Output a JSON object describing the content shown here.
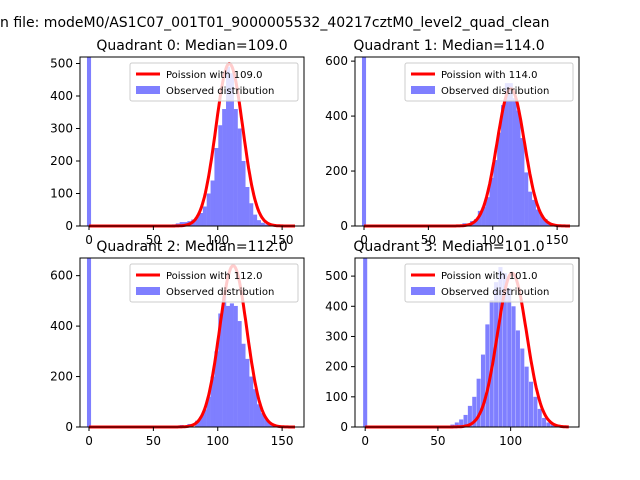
{
  "suptitle": "n file: modeM0/AS1C07_001T01_9000005532_40217cztM0_level2_quad_clean",
  "colors": {
    "observed": "#7f7fff",
    "poisson": "#ff0000"
  },
  "chart_data": [
    {
      "type": "bar",
      "title": "Quadrant 0: Median=109.0",
      "xlim": [
        -7,
        167
      ],
      "ylim": [
        0,
        520
      ],
      "xticks": [
        "0",
        "50",
        "100",
        "150"
      ],
      "yticks": [
        "0",
        "100",
        "200",
        "300",
        "400",
        "500"
      ],
      "legend": [
        "Poission with 109.0",
        "Observed distribution"
      ],
      "legend_position": "upper right",
      "series": [
        {
          "name": "Observed distribution",
          "x": [
            0,
            12,
            24,
            36,
            48,
            60,
            66,
            69,
            72,
            75,
            78,
            81,
            84,
            87,
            90,
            93,
            96,
            99,
            102,
            105,
            108,
            111,
            114,
            117,
            120,
            123,
            126,
            129,
            132,
            135,
            138,
            141,
            144,
            147,
            150,
            153,
            156
          ],
          "values": [
            520,
            0,
            0,
            0,
            3,
            3,
            5,
            8,
            12,
            12,
            15,
            20,
            28,
            40,
            60,
            100,
            140,
            240,
            310,
            360,
            490,
            470,
            360,
            300,
            200,
            120,
            70,
            35,
            18,
            10,
            5,
            0,
            0,
            0,
            0,
            0,
            0
          ]
        },
        {
          "name": "Poission with 109.0",
          "mean": 109.0,
          "peak": 500,
          "x_range": [
            0,
            160
          ]
        }
      ]
    },
    {
      "type": "bar",
      "title": "Quadrant 1: Median=114.0",
      "xlim": [
        -7,
        167
      ],
      "ylim": [
        0,
        615
      ],
      "xticks": [
        "0",
        "50",
        "100",
        "150"
      ],
      "yticks": [
        "0",
        "200",
        "400",
        "600"
      ],
      "legend": [
        "Poission with 114.0",
        "Observed distribution"
      ],
      "legend_position": "upper right",
      "series": [
        {
          "name": "Observed distribution",
          "x": [
            0,
            12,
            24,
            36,
            48,
            60,
            72,
            78,
            84,
            87,
            90,
            93,
            96,
            99,
            102,
            105,
            108,
            111,
            114,
            117,
            120,
            123,
            126,
            129,
            132,
            135,
            138,
            141,
            144,
            147,
            150
          ],
          "values": [
            615,
            0,
            0,
            0,
            0,
            3,
            5,
            10,
            18,
            25,
            55,
            70,
            105,
            175,
            240,
            340,
            440,
            520,
            520,
            465,
            420,
            320,
            195,
            125,
            95,
            60,
            40,
            25,
            12,
            5,
            0
          ]
        },
        {
          "name": "Poission with 114.0",
          "mean": 114.0,
          "peak": 500,
          "x_range": [
            0,
            160
          ]
        }
      ]
    },
    {
      "type": "bar",
      "title": "Quadrant 2: Median=112.0",
      "xlim": [
        -7,
        167
      ],
      "ylim": [
        0,
        670
      ],
      "xticks": [
        "0",
        "50",
        "100",
        "150"
      ],
      "yticks": [
        "0",
        "200",
        "400",
        "600"
      ],
      "legend": [
        "Poission with 112.0",
        "Observed distribution"
      ],
      "legend_position": "upper right",
      "series": [
        {
          "name": "Observed distribution",
          "x": [
            0,
            12,
            24,
            36,
            48,
            60,
            72,
            78,
            84,
            87,
            90,
            93,
            96,
            99,
            102,
            105,
            108,
            111,
            114,
            117,
            120,
            123,
            126,
            129,
            132,
            135,
            138,
            141,
            144,
            147,
            150,
            153,
            156
          ],
          "values": [
            670,
            0,
            0,
            0,
            0,
            3,
            8,
            12,
            25,
            40,
            70,
            120,
            200,
            300,
            450,
            520,
            480,
            490,
            480,
            420,
            330,
            270,
            200,
            150,
            90,
            55,
            30,
            15,
            5,
            3,
            0,
            0,
            0
          ]
        },
        {
          "name": "Poission with 112.0",
          "mean": 112.0,
          "peak": 640,
          "x_range": [
            0,
            160
          ]
        }
      ]
    },
    {
      "type": "bar",
      "title": "Quadrant 3: Median=101.0",
      "xlim": [
        -7,
        147
      ],
      "ylim": [
        0,
        560
      ],
      "xticks": [
        "0",
        "50",
        "100"
      ],
      "yticks": [
        "0",
        "100",
        "200",
        "300",
        "400",
        "500"
      ],
      "legend": [
        "Poission with 101.0",
        "Observed distribution"
      ],
      "legend_position": "upper right",
      "series": [
        {
          "name": "Observed distribution",
          "x": [
            0,
            10,
            20,
            30,
            40,
            50,
            60,
            63,
            66,
            69,
            72,
            75,
            78,
            81,
            84,
            87,
            90,
            93,
            96,
            99,
            102,
            105,
            108,
            111,
            114,
            117,
            120,
            123,
            126,
            129,
            132,
            135,
            138
          ],
          "values": [
            560,
            0,
            0,
            0,
            0,
            3,
            8,
            15,
            25,
            40,
            70,
            100,
            160,
            240,
            340,
            420,
            480,
            530,
            510,
            460,
            400,
            320,
            260,
            200,
            150,
            100,
            60,
            30,
            15,
            8,
            3,
            0,
            0
          ]
        },
        {
          "name": "Poission with 101.0",
          "mean": 101.0,
          "peak": 510,
          "x_range": [
            0,
            140
          ]
        }
      ]
    }
  ]
}
